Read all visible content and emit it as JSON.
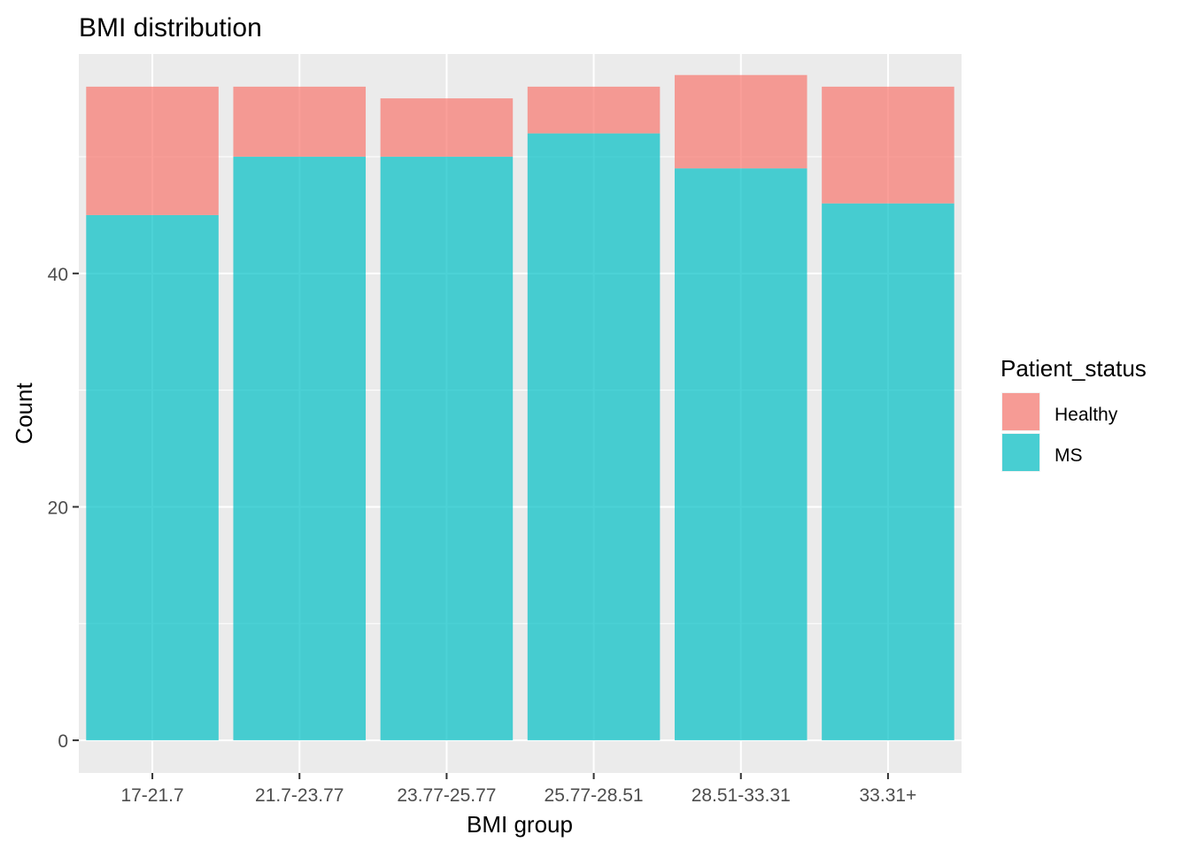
{
  "chart_data": {
    "type": "bar",
    "stacked": true,
    "title": "BMI distribution",
    "xlabel": "BMI group",
    "ylabel": "Count",
    "categories": [
      "17-21.7",
      "21.7-23.77",
      "23.77-25.77",
      "25.77-28.51",
      "28.51-33.31",
      "33.31+"
    ],
    "series": [
      {
        "name": "MS",
        "values": [
          45,
          50,
          50,
          52,
          49,
          46
        ],
        "color": "#00BFC4"
      },
      {
        "name": "Healthy",
        "values": [
          11,
          6,
          5,
          4,
          8,
          10
        ],
        "color": "#F8766D"
      }
    ],
    "ylim": [
      -2.8,
      58.8
    ],
    "yticks": [
      0,
      20,
      40
    ],
    "grid": true,
    "legend": {
      "title": "Patient_status",
      "placement": "right",
      "entries": [
        "Healthy",
        "MS"
      ]
    }
  }
}
